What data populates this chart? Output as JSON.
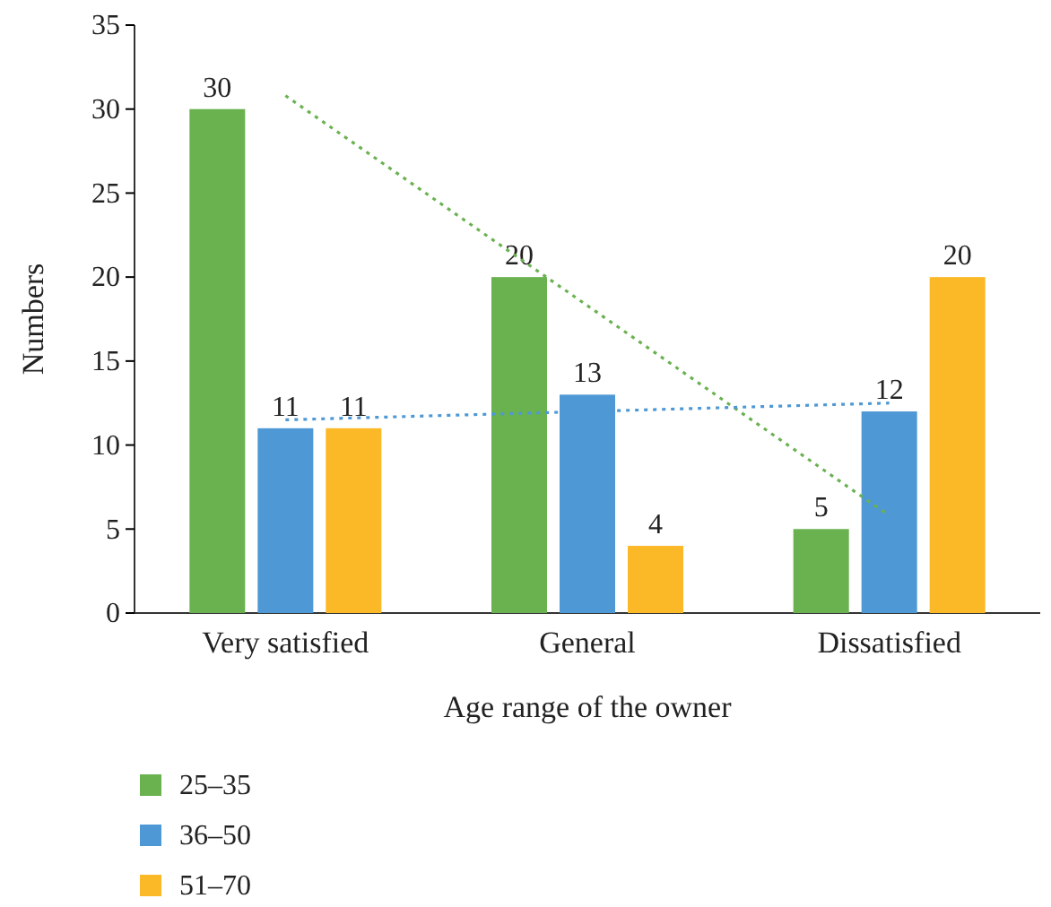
{
  "chart_data": {
    "type": "bar",
    "xlabel": "Age range of the owner",
    "ylabel": "Numbers",
    "categories": [
      "Very satisfied",
      "General",
      "Dissatisfied"
    ],
    "series": [
      {
        "name": "25–35",
        "color": "#6ab150",
        "values": [
          30,
          20,
          5
        ],
        "value_labels": [
          "30",
          "20",
          "5"
        ]
      },
      {
        "name": "36–50",
        "color": "#4e98d5",
        "values": [
          11,
          13,
          12
        ],
        "value_labels": [
          "11",
          "13",
          "12"
        ]
      },
      {
        "name": "51–70",
        "color": "#fbb827",
        "values": [
          11,
          4,
          20
        ],
        "value_labels": [
          "11",
          "4",
          "20"
        ]
      },
      {
        "type": "line",
        "color": "#6ab150",
        "x": [
          "Very satisfied",
          "Dissatisfied"
        ],
        "values": [
          30.8,
          5.8
        ],
        "line_style": "dotted",
        "marker": "none"
      },
      {
        "type": "line",
        "color": "#4e98d5",
        "x": [
          "Very satisfied",
          "Dissatisfied"
        ],
        "values": [
          11.5,
          12.5
        ],
        "line_style": "dotted",
        "marker": "none"
      }
    ],
    "ylim": [
      0,
      35
    ],
    "yticks": [
      0,
      5,
      10,
      15,
      20,
      25,
      30,
      35
    ],
    "legend": "bottom left",
    "grid": false
  }
}
